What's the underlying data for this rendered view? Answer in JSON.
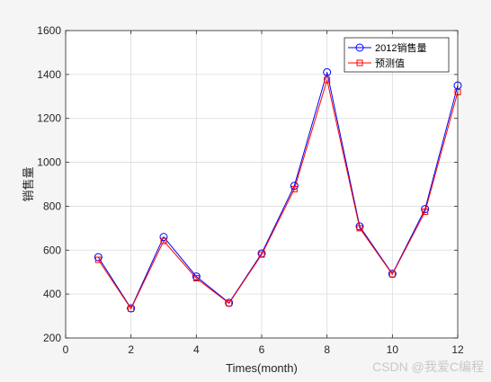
{
  "chart_data": {
    "type": "line",
    "x": [
      1,
      2,
      3,
      4,
      5,
      6,
      7,
      8,
      9,
      10,
      11,
      12
    ],
    "series": [
      {
        "name": "2012销售量",
        "color": "#0000ff",
        "marker": "circle",
        "values": [
          568,
          335,
          660,
          480,
          360,
          585,
          893,
          1410,
          708,
          492,
          787,
          1350
        ]
      },
      {
        "name": "预测值",
        "color": "#ff0000",
        "marker": "square",
        "values": [
          556,
          333,
          642,
          472,
          358,
          580,
          878,
          1375,
          700,
          490,
          775,
          1320
        ]
      }
    ],
    "xlabel": "Times(month)",
    "ylabel": "销售量",
    "xlim": [
      0,
      12
    ],
    "ylim": [
      200,
      1600
    ],
    "xticks": [
      0,
      2,
      4,
      6,
      8,
      10,
      12
    ],
    "yticks": [
      200,
      400,
      600,
      800,
      1000,
      1200,
      1400,
      1600
    ],
    "grid": true,
    "legend_position": "top-right"
  },
  "watermark": "CSDN @我爱C编程"
}
